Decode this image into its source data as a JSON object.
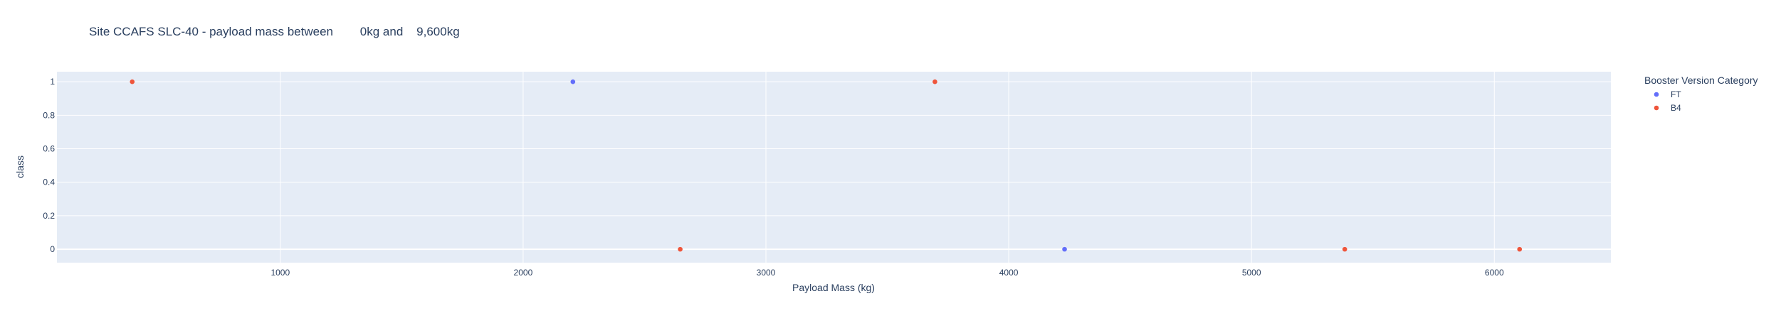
{
  "chart_data": {
    "type": "scatter",
    "title": "Site CCAFS SLC-40 - payload mass between        0kg and    9,600kg",
    "xlabel": "Payload Mass (kg)",
    "ylabel": "class",
    "xlim": [
      80,
      6480
    ],
    "ylim": [
      -0.08,
      1.06
    ],
    "x_ticks": [
      1000,
      2000,
      3000,
      4000,
      5000,
      6000
    ],
    "y_ticks": [
      0,
      0.2,
      0.4,
      0.6,
      0.8,
      1
    ],
    "grid": true,
    "legend_title": "Booster Version Category",
    "legend_position": "top-right",
    "plot_bgcolor": "#E5ECF6",
    "series": [
      {
        "name": "FT",
        "color": "#636EFA",
        "points": [
          {
            "x": 2205,
            "y": 1
          },
          {
            "x": 4230,
            "y": 0
          }
        ]
      },
      {
        "name": "B4",
        "color": "#EF553B",
        "points": [
          {
            "x": 390,
            "y": 1
          },
          {
            "x": 2647,
            "y": 0
          },
          {
            "x": 3696,
            "y": 1
          },
          {
            "x": 5384,
            "y": 0
          },
          {
            "x": 6104,
            "y": 0
          }
        ]
      }
    ]
  }
}
